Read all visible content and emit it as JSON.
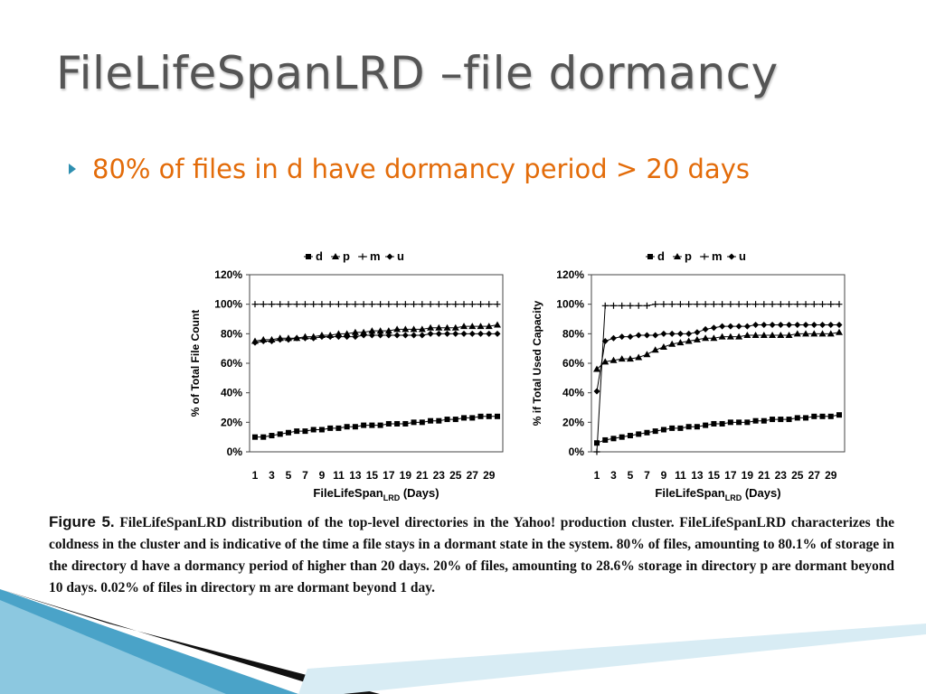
{
  "slide": {
    "title": "FileLifeSpanLRD –file dormancy",
    "bullet": "80% of files in d have dormancy period > 20 days"
  },
  "colors": {
    "accent_orange": "#e36c0a",
    "title_gray": "#555555",
    "bullet_arrow": "#2e8fb0",
    "deco_blue": "#4aa3c8",
    "deco_dark": "#111111"
  },
  "caption": {
    "label": "Figure 5.",
    "text": "FileLifeSpanLRD distribution of the top-level directories in the Yahoo! production cluster. FileLifeSpanLRD characterizes the coldness in the cluster and is indicative of the time a file stays in a dormant state in the system. 80% of files, amounting to 80.1% of storage in the directory d have a dormancy period of higher than 20 days. 20% of files, amounting to 28.6% storage in directory p are dormant beyond 10 days. 0.02% of files in directory m are dormant beyond 1 day."
  },
  "chart_data": [
    {
      "type": "line",
      "ylabel": "% of Total File Count",
      "xlabel": "FileLifeSpan",
      "xlabel_sub": "LRD",
      "xlabel_suffix": " (Days)",
      "ylim": [
        0,
        120
      ],
      "yticks": [
        0,
        20,
        40,
        60,
        80,
        100,
        120
      ],
      "ytick_labels": [
        "0%",
        "20%",
        "40%",
        "60%",
        "80%",
        "100%",
        "120%"
      ],
      "xtick_labels": [
        "1",
        "3",
        "5",
        "7",
        "9",
        "11",
        "13",
        "15",
        "17",
        "19",
        "21",
        "23",
        "25",
        "27",
        "29"
      ],
      "legend_position": "top",
      "grid": false,
      "series": [
        {
          "name": "d",
          "marker": "square",
          "values": [
            10,
            10,
            11,
            12,
            13,
            14,
            14,
            15,
            15,
            16,
            16,
            17,
            17,
            18,
            18,
            18,
            19,
            19,
            19,
            20,
            20,
            21,
            21,
            22,
            22,
            23,
            23,
            24,
            24,
            24
          ]
        },
        {
          "name": "p",
          "marker": "triangle",
          "values": [
            75,
            76,
            76,
            77,
            77,
            77,
            78,
            78,
            79,
            79,
            80,
            80,
            81,
            81,
            82,
            82,
            82,
            83,
            83,
            83,
            83,
            84,
            84,
            84,
            84,
            85,
            85,
            85,
            85,
            86
          ]
        },
        {
          "name": "m",
          "marker": "plus",
          "values": [
            100,
            100,
            100,
            100,
            100,
            100,
            100,
            100,
            100,
            100,
            100,
            100,
            100,
            100,
            100,
            100,
            100,
            100,
            100,
            100,
            100,
            100,
            100,
            100,
            100,
            100,
            100,
            100,
            100,
            100
          ]
        },
        {
          "name": "u",
          "marker": "diamond",
          "values": [
            74,
            75,
            75,
            76,
            76,
            77,
            77,
            77,
            78,
            78,
            78,
            78,
            78,
            79,
            79,
            79,
            79,
            79,
            79,
            79,
            79,
            80,
            80,
            80,
            80,
            80,
            80,
            80,
            80,
            80
          ]
        }
      ]
    },
    {
      "type": "line",
      "ylabel": "% if Total Used Capacity",
      "xlabel": "FileLifeSpan",
      "xlabel_sub": "LRD",
      "xlabel_suffix": " (Days)",
      "ylim": [
        0,
        120
      ],
      "yticks": [
        0,
        20,
        40,
        60,
        80,
        100,
        120
      ],
      "ytick_labels": [
        "0%",
        "20%",
        "40%",
        "60%",
        "80%",
        "100%",
        "120%"
      ],
      "xtick_labels": [
        "1",
        "3",
        "5",
        "7",
        "9",
        "11",
        "13",
        "15",
        "17",
        "19",
        "21",
        "23",
        "25",
        "27",
        "29"
      ],
      "legend_position": "top",
      "grid": false,
      "series": [
        {
          "name": "d",
          "marker": "square",
          "values": [
            6,
            8,
            9,
            10,
            11,
            12,
            13,
            14,
            15,
            16,
            16,
            17,
            17,
            18,
            19,
            19,
            20,
            20,
            20,
            21,
            21,
            22,
            22,
            22,
            23,
            23,
            24,
            24,
            24,
            25
          ]
        },
        {
          "name": "p",
          "marker": "triangle",
          "values": [
            56,
            61,
            62,
            63,
            63,
            64,
            66,
            69,
            71,
            73,
            74,
            75,
            76,
            77,
            77,
            78,
            78,
            78,
            79,
            79,
            79,
            79,
            79,
            79,
            80,
            80,
            80,
            80,
            80,
            81
          ]
        },
        {
          "name": "m",
          "marker": "plus",
          "values": [
            0,
            99,
            99,
            99,
            99,
            99,
            99,
            100,
            100,
            100,
            100,
            100,
            100,
            100,
            100,
            100,
            100,
            100,
            100,
            100,
            100,
            100,
            100,
            100,
            100,
            100,
            100,
            100,
            100,
            100
          ]
        },
        {
          "name": "u",
          "marker": "diamond",
          "values": [
            41,
            75,
            77,
            78,
            78,
            79,
            79,
            79,
            80,
            80,
            80,
            80,
            81,
            83,
            84,
            85,
            85,
            85,
            85,
            86,
            86,
            86,
            86,
            86,
            86,
            86,
            86,
            86,
            86,
            86
          ]
        }
      ]
    }
  ]
}
